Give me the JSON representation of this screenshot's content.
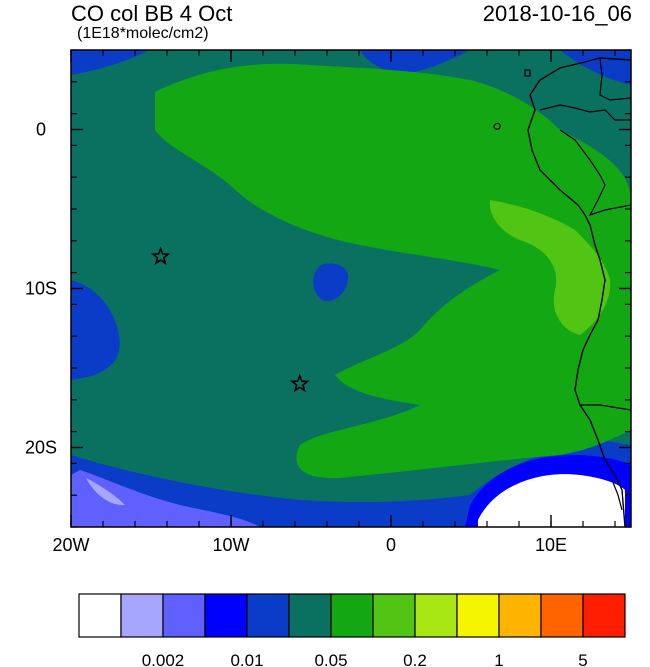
{
  "header": {
    "title": "CO col BB 4 Oct",
    "subtitle": "(1E18*molec/cm2)",
    "datetime": "2018-10-16_06"
  },
  "map": {
    "lon_range": [
      -20,
      15
    ],
    "lat_range": [
      -25,
      5
    ],
    "x_ticks": [
      {
        "value": -20,
        "label": "20W"
      },
      {
        "value": -10,
        "label": "10W"
      },
      {
        "value": 0,
        "label": "0"
      },
      {
        "value": 10,
        "label": "10E"
      }
    ],
    "y_ticks": [
      {
        "value": 0,
        "label": "0"
      },
      {
        "value": -10,
        "label": "10S"
      },
      {
        "value": -20,
        "label": "20S"
      }
    ],
    "markers": [
      {
        "name": "star",
        "lon": -14.4,
        "lat": -8.0
      },
      {
        "name": "star",
        "lon": -5.7,
        "lat": -16.0
      }
    ]
  },
  "colorbar": {
    "colors": [
      "#ffffff",
      "#a6a6ff",
      "#6060ff",
      "#0000ff",
      "#0a3cc8",
      "#0a7060",
      "#13a813",
      "#52c414",
      "#a8e614",
      "#f5f500",
      "#ffb400",
      "#ff6400",
      "#ff1e00"
    ],
    "labels": [
      "0.002",
      "0.01",
      "0.05",
      "0.2",
      "1",
      "5"
    ]
  }
}
